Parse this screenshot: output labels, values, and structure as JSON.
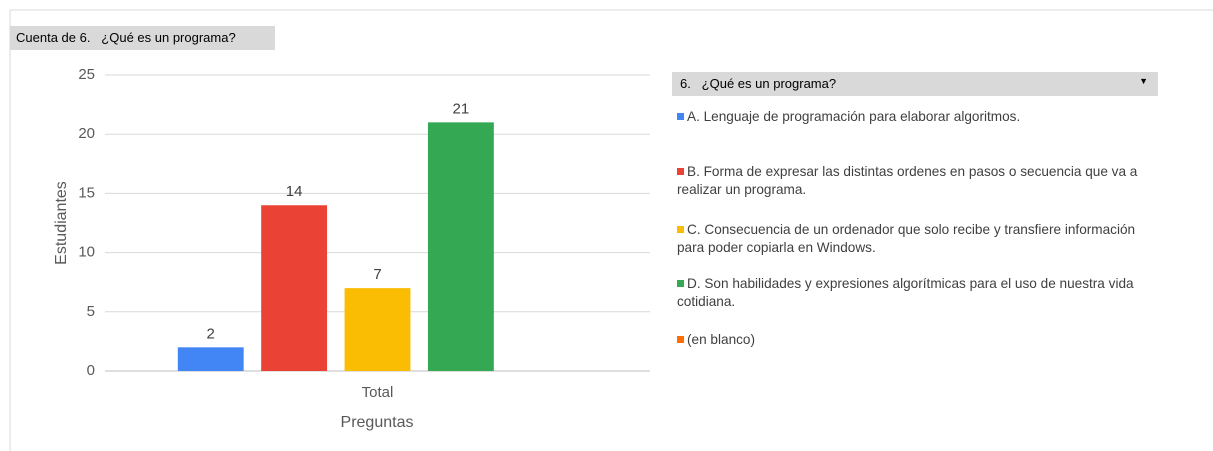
{
  "chart_data": {
    "type": "bar",
    "title": "Cuenta de 6.   ¿Qué es un programa?",
    "legend_title": "6.   ¿Qué es un programa?",
    "x_label": "Preguntas",
    "y_label": "Estudiantes",
    "categories": [
      "Total"
    ],
    "ylim": [
      0,
      25
    ],
    "yticks": [
      0,
      5,
      10,
      15,
      20,
      25
    ],
    "grid": true,
    "series": [
      {
        "name": "A. Lenguaje de programación para elaborar algoritmos.",
        "color": "#4285f4",
        "values": [
          2
        ]
      },
      {
        "name": "B. Forma de expresar las distintas ordenes en pasos o secuencia que va a realizar un programa.",
        "color": "#ea4335",
        "values": [
          14
        ]
      },
      {
        "name": "C. Consecuencia de un ordenador que solo recibe y transfiere información para poder copiarla en Windows.",
        "color": "#fbbc04",
        "values": [
          7
        ]
      },
      {
        "name": "D. Son habilidades y expresiones algorítmicas para el uso de nuestra vida cotidiana.",
        "color": "#34a853",
        "values": [
          21
        ]
      },
      {
        "name": "(en blanco)",
        "color": "#ff6d01",
        "values": [
          null
        ]
      }
    ]
  }
}
